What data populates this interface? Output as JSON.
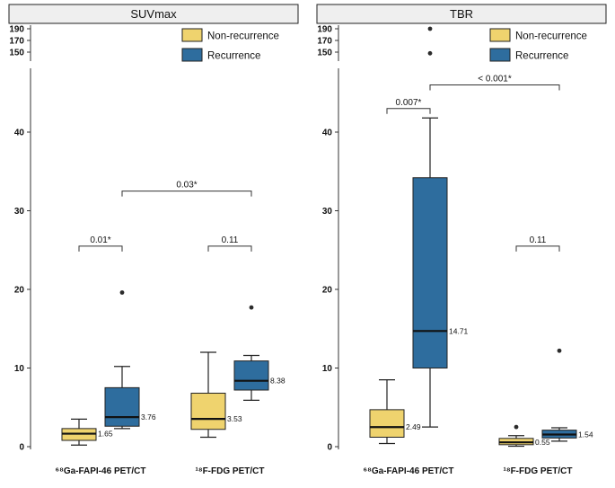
{
  "colors": {
    "nonrecurrence": "#EFD36E",
    "recurrence": "#2E6D9E",
    "box_border": "#222222",
    "median_line": "#111111",
    "outlier": "#2b2b2b",
    "strip_fill": "#efefef",
    "axis": "#333333"
  },
  "legend": {
    "items": [
      {
        "label": "Non-recurrence",
        "color_key": "nonrecurrence"
      },
      {
        "label": "Recurrence",
        "color_key": "recurrence"
      }
    ]
  },
  "chart_data": [
    {
      "type": "box",
      "title": "SUVmax",
      "y_axis": {
        "main_ticks": [
          0,
          10,
          20,
          30,
          40
        ],
        "break_ticks": [
          150,
          170,
          190
        ],
        "main_range": [
          0,
          47
        ],
        "break_range": [
          145,
          195
        ]
      },
      "categories": [
        "⁶⁸Ga-FAPI-46 PET/CT",
        "¹⁸F-FDG PET/CT"
      ],
      "series": [
        "Non-recurrence",
        "Recurrence"
      ],
      "boxes": [
        {
          "group": 0,
          "series": 0,
          "low": 0.2,
          "q1": 0.8,
          "median": 1.65,
          "q3": 2.3,
          "high": 3.5,
          "outliers": [],
          "median_label": "1.65"
        },
        {
          "group": 0,
          "series": 1,
          "low": 2.3,
          "q1": 2.6,
          "median": 3.76,
          "q3": 7.5,
          "high": 10.2,
          "outliers": [
            19.6
          ],
          "median_label": "3.76"
        },
        {
          "group": 1,
          "series": 0,
          "low": 1.2,
          "q1": 2.2,
          "median": 3.53,
          "q3": 6.8,
          "high": 12.0,
          "outliers": [],
          "median_label": "3.53"
        },
        {
          "group": 1,
          "series": 1,
          "low": 5.9,
          "q1": 7.2,
          "median": 8.38,
          "q3": 10.9,
          "high": 11.6,
          "outliers": [
            17.7
          ],
          "median_label": "8.38"
        }
      ],
      "annotations": [
        {
          "text": "0.01*",
          "from": [
            0,
            0
          ],
          "to": [
            0,
            1
          ],
          "y": 25.5
        },
        {
          "text": "0.11",
          "from": [
            1,
            0
          ],
          "to": [
            1,
            1
          ],
          "y": 25.5
        },
        {
          "text": "0.03*",
          "from": [
            0,
            1
          ],
          "to": [
            1,
            1
          ],
          "y": 32.5
        }
      ]
    },
    {
      "type": "box",
      "title": "TBR",
      "y_axis": {
        "main_ticks": [
          0,
          10,
          20,
          30,
          40
        ],
        "break_ticks": [
          150,
          170,
          190
        ],
        "main_range": [
          0,
          47
        ],
        "break_range": [
          145,
          195
        ]
      },
      "categories": [
        "⁶⁸Ga-FAPI-46 PET/CT",
        "¹⁸F-FDG PET/CT"
      ],
      "series": [
        "Non-recurrence",
        "Recurrence"
      ],
      "boxes": [
        {
          "group": 0,
          "series": 0,
          "low": 0.4,
          "q1": 1.2,
          "median": 2.49,
          "q3": 4.7,
          "high": 8.5,
          "outliers": [],
          "median_label": "2.49"
        },
        {
          "group": 0,
          "series": 1,
          "low": 2.5,
          "q1": 10.0,
          "median": 14.71,
          "q3": 34.2,
          "high": 41.8,
          "outliers": [
            190,
            148
          ],
          "median_label": "14.71"
        },
        {
          "group": 1,
          "series": 0,
          "low": 0.05,
          "q1": 0.25,
          "median": 0.55,
          "q3": 1.05,
          "high": 1.4,
          "outliers": [
            2.5
          ],
          "median_label": "0.55"
        },
        {
          "group": 1,
          "series": 1,
          "low": 0.7,
          "q1": 1.1,
          "median": 1.54,
          "q3": 2.1,
          "high": 2.4,
          "outliers": [
            12.2
          ],
          "median_label": "1.54"
        }
      ],
      "annotations": [
        {
          "text": "0.007*",
          "from": [
            0,
            0
          ],
          "to": [
            0,
            1
          ],
          "y": 43
        },
        {
          "text": "< 0.001*",
          "from": [
            0,
            1
          ],
          "to": [
            1,
            1
          ],
          "y": 46
        },
        {
          "text": "0.11",
          "from": [
            1,
            0
          ],
          "to": [
            1,
            1
          ],
          "y": 25.5
        }
      ]
    }
  ]
}
